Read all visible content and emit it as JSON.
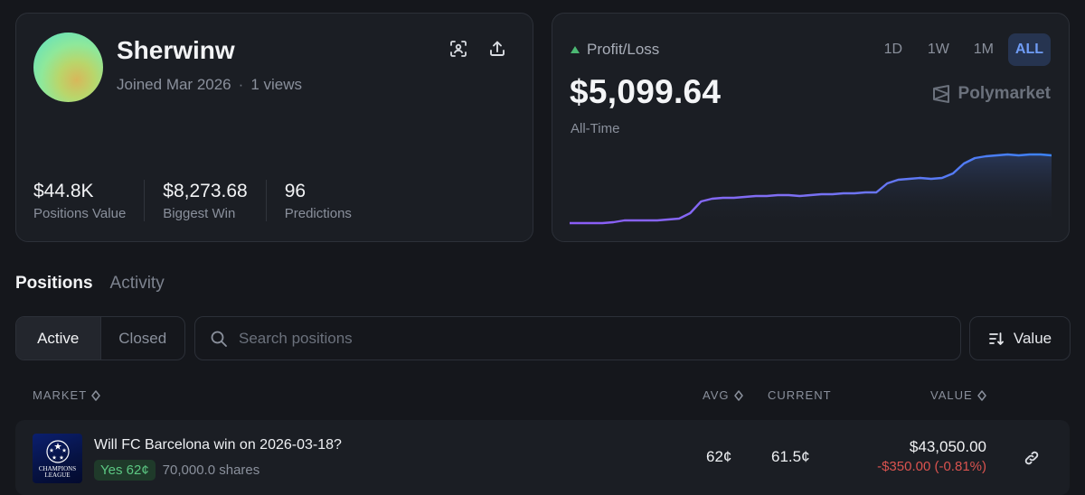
{
  "profile": {
    "username": "Sherwinw",
    "joined": "Joined Mar 2026",
    "separator": "·",
    "views": "1 views",
    "stats": [
      {
        "value": "$44.8K",
        "label": "Positions Value"
      },
      {
        "value": "$8,273.68",
        "label": "Biggest Win"
      },
      {
        "value": "96",
        "label": "Predictions"
      }
    ],
    "icons": [
      "qr-scan-icon",
      "share-upload-icon"
    ]
  },
  "pnl": {
    "label": "Profit/Loss",
    "trend": "up",
    "value": "$5,099.64",
    "period_label": "All-Time",
    "ranges": [
      "1D",
      "1W",
      "1M",
      "ALL"
    ],
    "active_range": "ALL",
    "brand": "Polymarket",
    "colors": {
      "line_start": "#8b5cf6",
      "line_end": "#3b82f6",
      "up": "#4cb873"
    },
    "chart_data": {
      "type": "line",
      "series_values": [
        0.0,
        0.0,
        0.0,
        0.0,
        0.01,
        0.03,
        0.03,
        0.03,
        0.03,
        0.04,
        0.05,
        0.11,
        0.24,
        0.27,
        0.28,
        0.28,
        0.29,
        0.3,
        0.3,
        0.31,
        0.31,
        0.3,
        0.31,
        0.32,
        0.32,
        0.33,
        0.33,
        0.34,
        0.34,
        0.44,
        0.48,
        0.49,
        0.5,
        0.49,
        0.5,
        0.55,
        0.66,
        0.72,
        0.74,
        0.75,
        0.76,
        0.75,
        0.76,
        0.76,
        0.75
      ],
      "grid": false
    }
  },
  "tabs": {
    "items": [
      "Positions",
      "Activity"
    ],
    "active": "Positions"
  },
  "filters": {
    "options": [
      "Active",
      "Closed"
    ],
    "active": "Active"
  },
  "search": {
    "placeholder": "Search positions",
    "value": ""
  },
  "sort": {
    "label": "Value"
  },
  "table": {
    "headers": {
      "market": "MARKET",
      "avg": "AVG",
      "current": "CURRENT",
      "value": "VALUE"
    },
    "rows": [
      {
        "image_text": "CHAMPIONS LEAGUE",
        "title": "Will FC Barcelona win on 2026-03-18?",
        "outcome": "Yes 62¢",
        "shares": "70,000.0 shares",
        "avg": "62¢",
        "current": "61.5¢",
        "value": "$43,050.00",
        "change": "-$350.00 (-0.81%)"
      }
    ]
  }
}
